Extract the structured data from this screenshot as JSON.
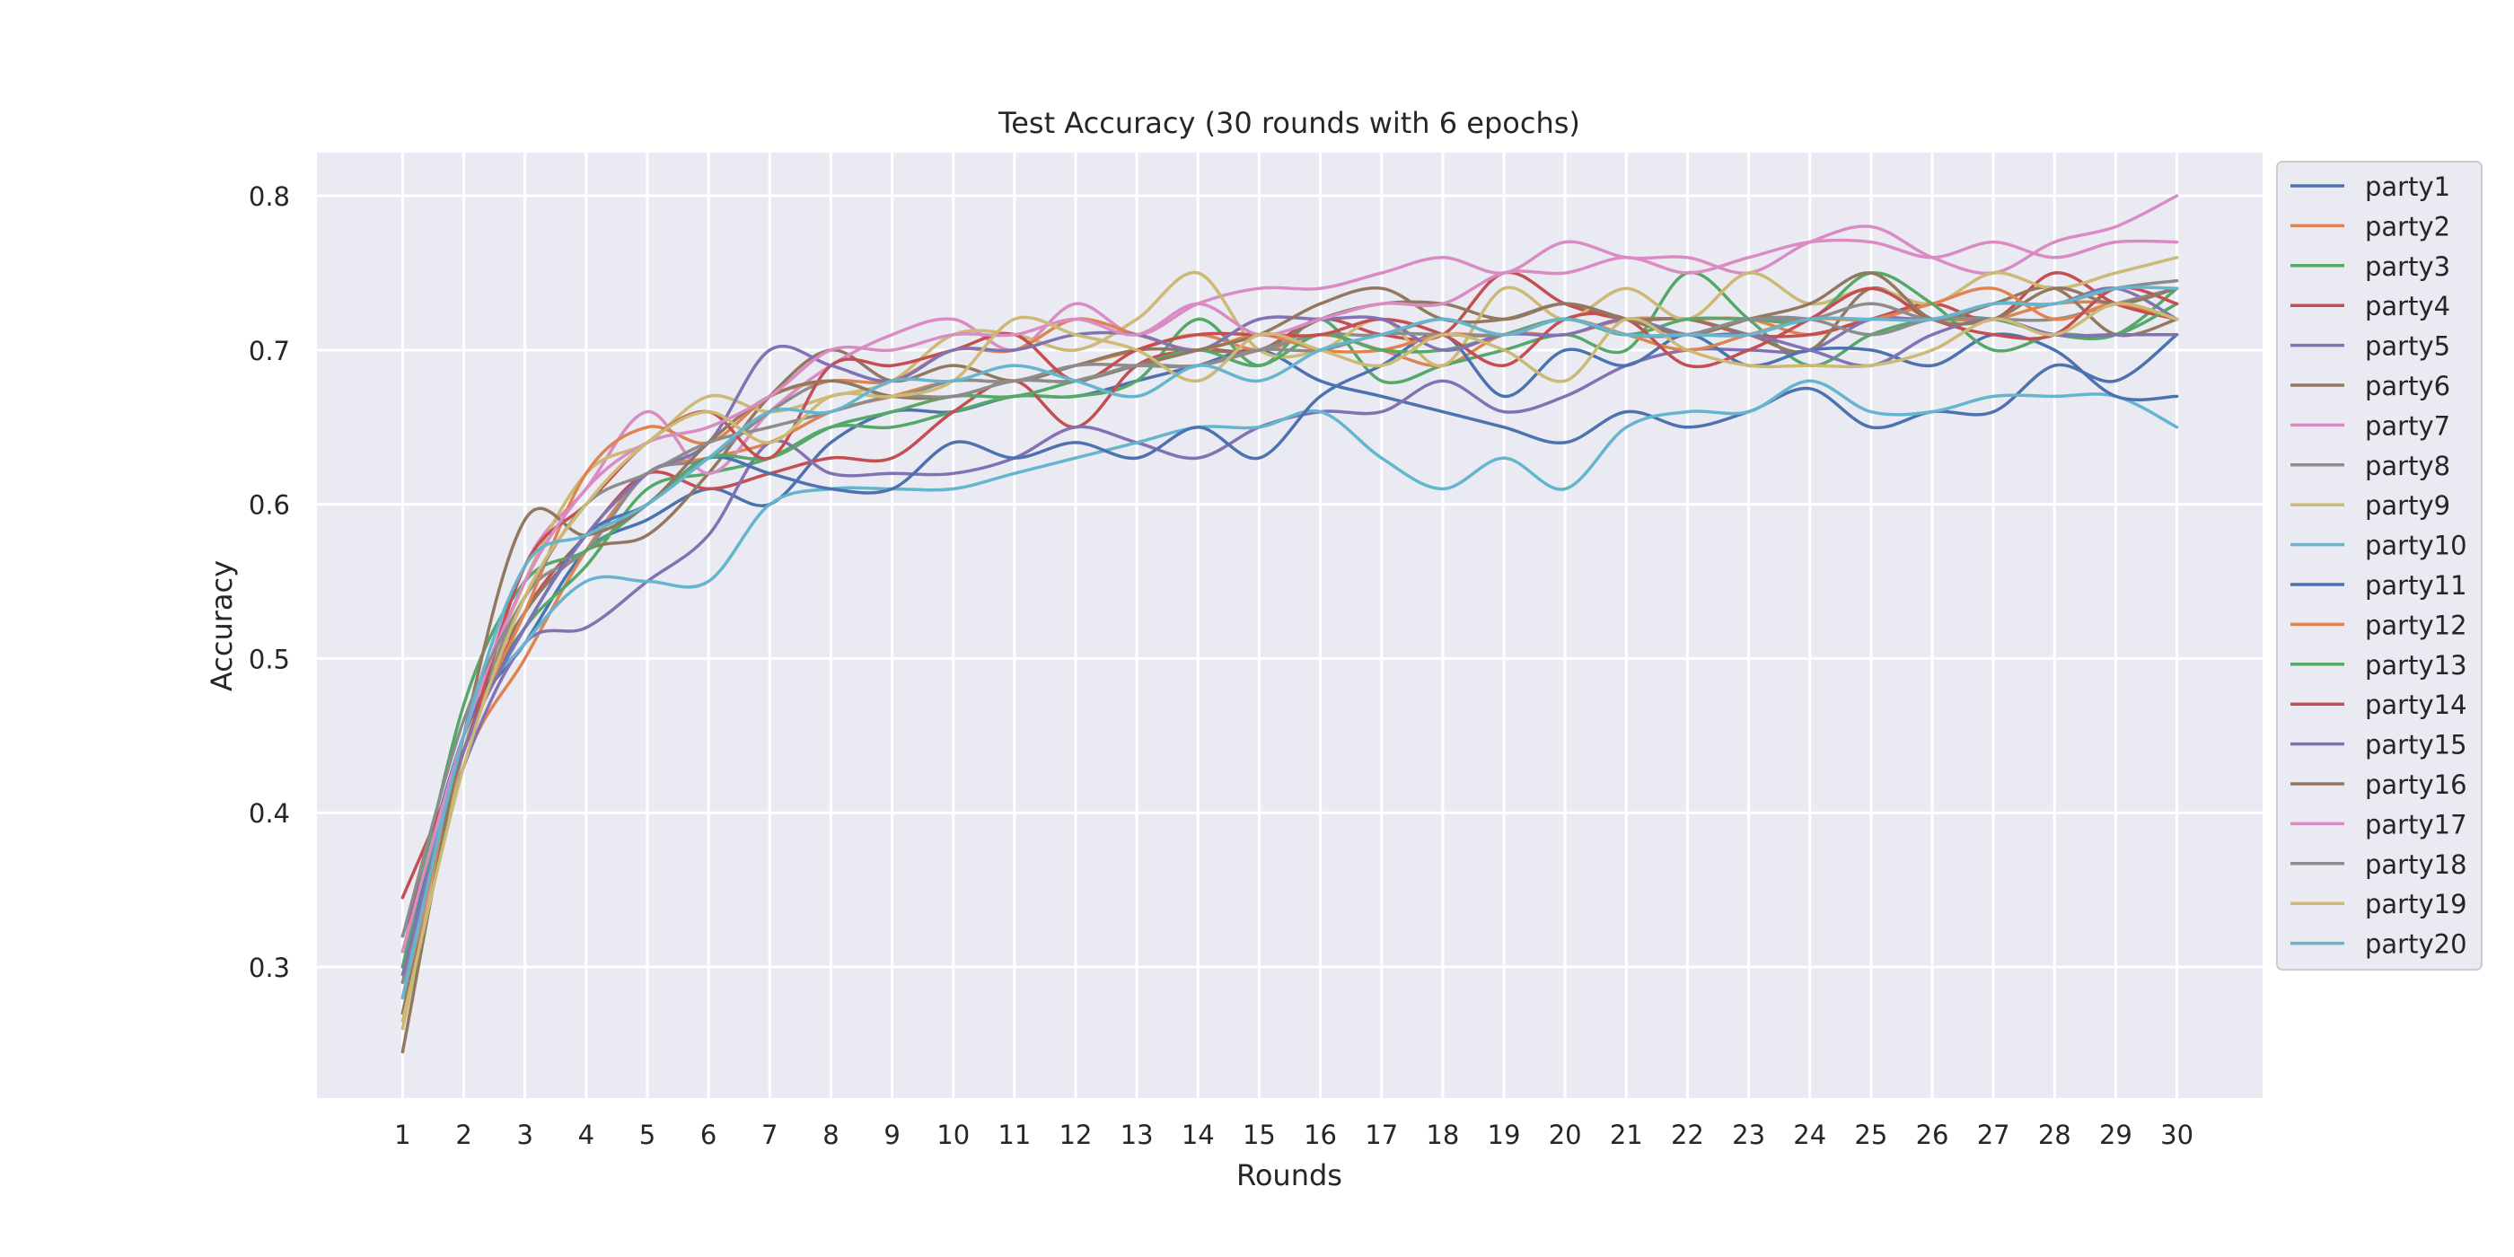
{
  "chart_data": {
    "type": "line",
    "title": "Test Accuracy (30 rounds with 6 epochs)",
    "xlabel": "Rounds",
    "ylabel": "Accuracy",
    "x": [
      1,
      2,
      3,
      4,
      5,
      6,
      7,
      8,
      9,
      10,
      11,
      12,
      13,
      14,
      15,
      16,
      17,
      18,
      19,
      20,
      21,
      22,
      23,
      24,
      25,
      26,
      27,
      28,
      29,
      30
    ],
    "xlim": [
      -0.4,
      31.4
    ],
    "ylim": [
      0.215,
      0.828
    ],
    "yticks": [
      0.3,
      0.4,
      0.5,
      0.6,
      0.7,
      0.8
    ],
    "grid": true,
    "legend_position": "outside-right",
    "series": [
      {
        "name": "party1",
        "color": "#4c72b0",
        "values": [
          0.3,
          0.45,
          0.51,
          0.57,
          0.59,
          0.61,
          0.6,
          0.64,
          0.66,
          0.66,
          0.67,
          0.67,
          0.68,
          0.69,
          0.7,
          0.68,
          0.67,
          0.66,
          0.65,
          0.64,
          0.66,
          0.65,
          0.66,
          0.675,
          0.65,
          0.66,
          0.66,
          0.69,
          0.68,
          0.71
        ]
      },
      {
        "name": "party2",
        "color": "#dd8452",
        "values": [
          0.27,
          0.43,
          0.5,
          0.57,
          0.62,
          0.63,
          0.64,
          0.66,
          0.67,
          0.68,
          0.68,
          0.69,
          0.7,
          0.71,
          0.7,
          0.71,
          0.7,
          0.69,
          0.71,
          0.71,
          0.72,
          0.72,
          0.72,
          0.71,
          0.72,
          0.72,
          0.72,
          0.73,
          0.73,
          0.72
        ]
      },
      {
        "name": "party3",
        "color": "#55a868",
        "values": [
          0.29,
          0.45,
          0.52,
          0.56,
          0.61,
          0.62,
          0.63,
          0.65,
          0.65,
          0.66,
          0.67,
          0.67,
          0.68,
          0.72,
          0.69,
          0.72,
          0.68,
          0.69,
          0.7,
          0.71,
          0.7,
          0.75,
          0.72,
          0.69,
          0.71,
          0.72,
          0.72,
          0.71,
          0.71,
          0.74
        ]
      },
      {
        "name": "party4",
        "color": "#c44e52",
        "values": [
          0.32,
          0.44,
          0.53,
          0.58,
          0.62,
          0.61,
          0.62,
          0.63,
          0.63,
          0.66,
          0.68,
          0.65,
          0.69,
          0.7,
          0.7,
          0.72,
          0.71,
          0.71,
          0.75,
          0.73,
          0.72,
          0.72,
          0.71,
          0.71,
          0.72,
          0.73,
          0.72,
          0.75,
          0.73,
          0.72
        ]
      },
      {
        "name": "party5",
        "color": "#8172b3",
        "values": [
          0.3,
          0.43,
          0.51,
          0.52,
          0.55,
          0.58,
          0.64,
          0.62,
          0.62,
          0.62,
          0.63,
          0.65,
          0.64,
          0.63,
          0.65,
          0.66,
          0.66,
          0.68,
          0.66,
          0.67,
          0.69,
          0.7,
          0.7,
          0.7,
          0.72,
          0.72,
          0.73,
          0.73,
          0.74,
          0.72
        ]
      },
      {
        "name": "party6",
        "color": "#937860",
        "values": [
          0.27,
          0.45,
          0.53,
          0.57,
          0.58,
          0.62,
          0.67,
          0.7,
          0.68,
          0.69,
          0.68,
          0.69,
          0.7,
          0.7,
          0.7,
          0.72,
          0.73,
          0.73,
          0.72,
          0.73,
          0.72,
          0.72,
          0.71,
          0.7,
          0.74,
          0.72,
          0.73,
          0.74,
          0.71,
          0.72
        ]
      },
      {
        "name": "party7",
        "color": "#da8bc3",
        "values": [
          0.28,
          0.44,
          0.56,
          0.61,
          0.66,
          0.62,
          0.66,
          0.69,
          0.71,
          0.72,
          0.7,
          0.73,
          0.71,
          0.73,
          0.74,
          0.74,
          0.75,
          0.76,
          0.75,
          0.77,
          0.76,
          0.76,
          0.75,
          0.77,
          0.78,
          0.76,
          0.75,
          0.77,
          0.78,
          0.8
        ]
      },
      {
        "name": "party8",
        "color": "#8c8c8c",
        "values": [
          0.29,
          0.44,
          0.54,
          0.57,
          0.62,
          0.63,
          0.66,
          0.68,
          0.67,
          0.68,
          0.68,
          0.69,
          0.69,
          0.69,
          0.7,
          0.71,
          0.71,
          0.72,
          0.71,
          0.72,
          0.71,
          0.71,
          0.72,
          0.72,
          0.71,
          0.72,
          0.72,
          0.72,
          0.73,
          0.74
        ]
      },
      {
        "name": "party9",
        "color": "#ccb974",
        "values": [
          0.26,
          0.44,
          0.55,
          0.62,
          0.64,
          0.67,
          0.66,
          0.67,
          0.68,
          0.71,
          0.71,
          0.7,
          0.72,
          0.75,
          0.7,
          0.7,
          0.72,
          0.69,
          0.74,
          0.72,
          0.74,
          0.72,
          0.75,
          0.73,
          0.74,
          0.73,
          0.75,
          0.74,
          0.75,
          0.76
        ]
      },
      {
        "name": "party10",
        "color": "#64b5cd",
        "values": [
          0.28,
          0.45,
          0.51,
          0.55,
          0.55,
          0.55,
          0.6,
          0.61,
          0.61,
          0.61,
          0.62,
          0.63,
          0.64,
          0.65,
          0.65,
          0.66,
          0.63,
          0.61,
          0.63,
          0.61,
          0.65,
          0.66,
          0.66,
          0.68,
          0.66,
          0.66,
          0.67,
          0.67,
          0.67,
          0.65
        ]
      },
      {
        "name": "party11",
        "color": "#4c72b0",
        "values": [
          0.31,
          0.45,
          0.52,
          0.58,
          0.6,
          0.63,
          0.62,
          0.61,
          0.61,
          0.64,
          0.63,
          0.64,
          0.63,
          0.65,
          0.63,
          0.67,
          0.69,
          0.71,
          0.67,
          0.7,
          0.69,
          0.71,
          0.69,
          0.7,
          0.7,
          0.69,
          0.71,
          0.7,
          0.67,
          0.67
        ]
      },
      {
        "name": "party12",
        "color": "#dd8452",
        "values": [
          0.28,
          0.44,
          0.53,
          0.62,
          0.65,
          0.64,
          0.67,
          0.68,
          0.68,
          0.7,
          0.7,
          0.72,
          0.71,
          0.7,
          0.71,
          0.7,
          0.7,
          0.71,
          0.71,
          0.72,
          0.71,
          0.7,
          0.71,
          0.72,
          0.72,
          0.73,
          0.74,
          0.72,
          0.73,
          0.72
        ]
      },
      {
        "name": "party13",
        "color": "#55a868",
        "values": [
          0.3,
          0.47,
          0.55,
          0.57,
          0.6,
          0.63,
          0.63,
          0.65,
          0.66,
          0.67,
          0.67,
          0.68,
          0.69,
          0.7,
          0.69,
          0.71,
          0.7,
          0.7,
          0.71,
          0.72,
          0.71,
          0.72,
          0.72,
          0.72,
          0.75,
          0.73,
          0.7,
          0.71,
          0.71,
          0.73
        ]
      },
      {
        "name": "party14",
        "color": "#c44e52",
        "values": [
          0.345,
          0.44,
          0.56,
          0.6,
          0.64,
          0.66,
          0.63,
          0.69,
          0.69,
          0.7,
          0.71,
          0.68,
          0.7,
          0.71,
          0.71,
          0.71,
          0.72,
          0.71,
          0.69,
          0.72,
          0.72,
          0.69,
          0.7,
          0.72,
          0.74,
          0.72,
          0.71,
          0.71,
          0.74,
          0.73
        ]
      },
      {
        "name": "party15",
        "color": "#8172b3",
        "values": [
          0.295,
          0.44,
          0.52,
          0.58,
          0.62,
          0.64,
          0.7,
          0.69,
          0.68,
          0.7,
          0.7,
          0.71,
          0.71,
          0.7,
          0.72,
          0.72,
          0.72,
          0.7,
          0.71,
          0.71,
          0.72,
          0.71,
          0.71,
          0.7,
          0.69,
          0.71,
          0.72,
          0.71,
          0.71,
          0.71
        ]
      },
      {
        "name": "party16",
        "color": "#937860",
        "values": [
          0.245,
          0.45,
          0.59,
          0.58,
          0.6,
          0.64,
          0.67,
          0.68,
          0.67,
          0.67,
          0.68,
          0.68,
          0.69,
          0.7,
          0.71,
          0.73,
          0.74,
          0.72,
          0.72,
          0.73,
          0.72,
          0.71,
          0.72,
          0.73,
          0.75,
          0.72,
          0.72,
          0.74,
          0.73,
          0.74
        ]
      },
      {
        "name": "party17",
        "color": "#da8bc3",
        "values": [
          0.31,
          0.45,
          0.55,
          0.61,
          0.64,
          0.65,
          0.67,
          0.7,
          0.7,
          0.71,
          0.71,
          0.72,
          0.71,
          0.73,
          0.71,
          0.72,
          0.73,
          0.73,
          0.75,
          0.75,
          0.76,
          0.75,
          0.76,
          0.77,
          0.77,
          0.76,
          0.77,
          0.76,
          0.77,
          0.77
        ]
      },
      {
        "name": "party18",
        "color": "#8c8c8c",
        "values": [
          0.32,
          0.46,
          0.54,
          0.6,
          0.62,
          0.64,
          0.65,
          0.66,
          0.67,
          0.67,
          0.68,
          0.68,
          0.69,
          0.69,
          0.7,
          0.7,
          0.71,
          0.71,
          0.71,
          0.72,
          0.71,
          0.71,
          0.72,
          0.72,
          0.73,
          0.72,
          0.73,
          0.73,
          0.74,
          0.745
        ]
      },
      {
        "name": "party19",
        "color": "#ccb974",
        "values": [
          0.265,
          0.43,
          0.54,
          0.6,
          0.64,
          0.66,
          0.64,
          0.67,
          0.67,
          0.68,
          0.72,
          0.71,
          0.7,
          0.68,
          0.71,
          0.7,
          0.69,
          0.71,
          0.7,
          0.68,
          0.72,
          0.7,
          0.69,
          0.69,
          0.69,
          0.7,
          0.72,
          0.71,
          0.73,
          0.72
        ]
      },
      {
        "name": "party20",
        "color": "#64b5cd",
        "values": [
          0.28,
          0.45,
          0.56,
          0.58,
          0.6,
          0.63,
          0.66,
          0.66,
          0.68,
          0.68,
          0.69,
          0.68,
          0.67,
          0.69,
          0.68,
          0.7,
          0.71,
          0.72,
          0.71,
          0.72,
          0.71,
          0.71,
          0.71,
          0.72,
          0.72,
          0.72,
          0.73,
          0.73,
          0.74,
          0.74
        ]
      }
    ]
  }
}
